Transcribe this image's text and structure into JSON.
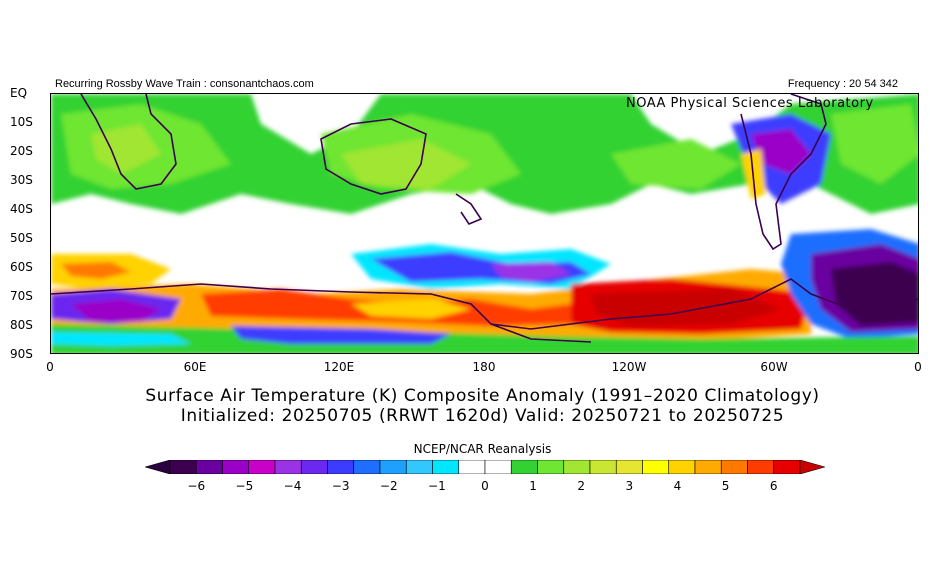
{
  "header": {
    "left": "Recurring Rossby Wave Train : consonantchaos.com",
    "right": "Frequency : 20 54 342",
    "lab": "NOAA Physical Sciences Laboratory"
  },
  "axes": {
    "y_labels": [
      "EQ",
      "10S",
      "20S",
      "30S",
      "40S",
      "50S",
      "60S",
      "70S",
      "80S",
      "90S"
    ],
    "x_labels": [
      "0",
      "60E",
      "120E",
      "180",
      "120W",
      "60W",
      "0"
    ]
  },
  "title": {
    "line1": "Surface Air Temperature (K) Composite Anomaly (1991–2020 Climatology)",
    "line2": "Initialized: 20250705 (RRWT 1620d) Valid: 20250721 to 20250725"
  },
  "colorbar": {
    "title": "NCEP/NCAR Reanalysis",
    "labels": [
      "−6",
      "−5",
      "−4",
      "−3",
      "−2",
      "−1",
      "0",
      "1",
      "2",
      "3",
      "4",
      "5",
      "6"
    ],
    "colors": [
      "#3d0050",
      "#6a00a0",
      "#9a00c8",
      "#c800c8",
      "#9b32e6",
      "#6a28f0",
      "#3c3cff",
      "#1e6eff",
      "#1ea0ff",
      "#32c8ff",
      "#00e6ff",
      "#ffffff",
      "#ffffff",
      "#32d232",
      "#6ee632",
      "#a0e632",
      "#c8e632",
      "#e6e632",
      "#ffff00",
      "#ffd200",
      "#ffaa00",
      "#ff7800",
      "#ff3c00",
      "#e60000"
    ],
    "left_end": "#2a0040",
    "right_end": "#c80000"
  }
}
